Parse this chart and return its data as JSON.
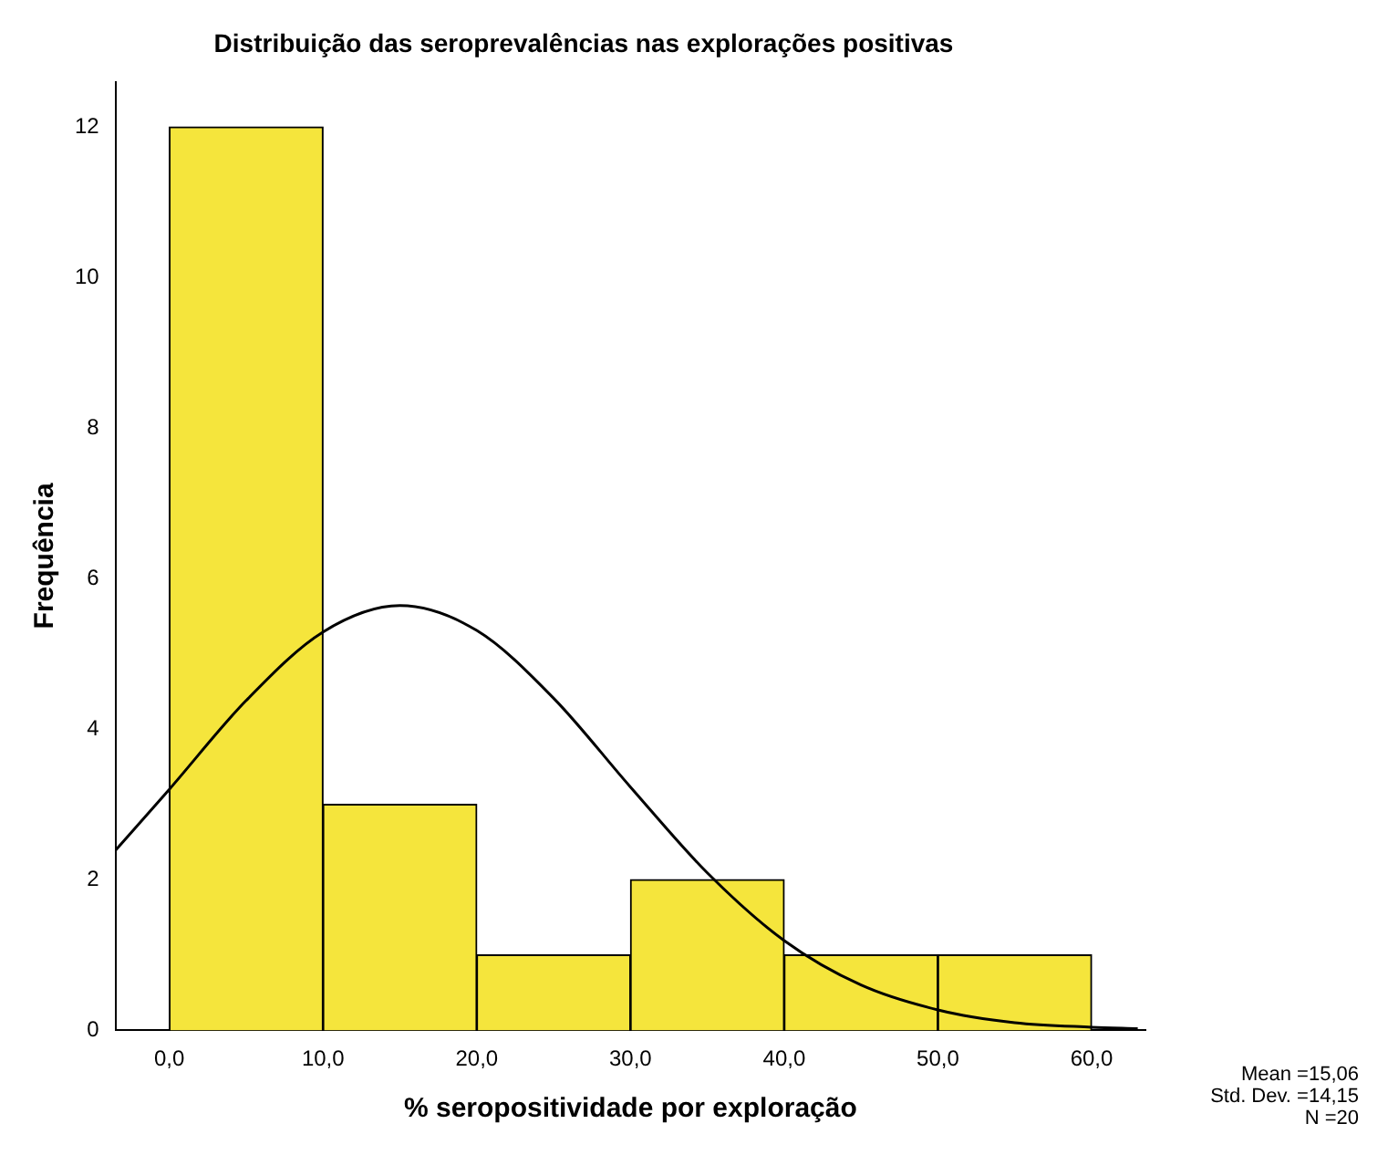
{
  "chart_data": {
    "type": "histogram",
    "title": "Distribuição das seroprevalências nas explorações positivas",
    "xlabel": "% seropositividade por exploração",
    "ylabel": "Frequência",
    "bins": [
      0,
      10,
      20,
      30,
      40,
      50,
      60
    ],
    "values": [
      12,
      3,
      1,
      2,
      1,
      1
    ],
    "color": "#f5e53c",
    "series": [
      {
        "type": "line",
        "color": "#000000",
        "x": [
          -3.5,
          0,
          5,
          10,
          15,
          20,
          25,
          30,
          35,
          40,
          45,
          50,
          55,
          60,
          63
        ],
        "values": [
          2.39,
          3.2,
          4.38,
          5.29,
          5.64,
          5.31,
          4.41,
          3.23,
          2.09,
          1.19,
          0.6,
          0.27,
          0.1,
          0.04,
          0.02
        ]
      }
    ],
    "marker": "none",
    "xlim": [
      -3.5,
      63.5
    ],
    "ylim": [
      0,
      12.6
    ],
    "xticks": [
      {
        "value": 0,
        "label": "0,0"
      },
      {
        "value": 10,
        "label": "10,0"
      },
      {
        "value": 20,
        "label": "20,0"
      },
      {
        "value": 30,
        "label": "30,0"
      },
      {
        "value": 40,
        "label": "40,0"
      },
      {
        "value": 50,
        "label": "50,0"
      },
      {
        "value": 60,
        "label": "60,0"
      }
    ],
    "yticks": [
      0,
      2,
      4,
      6,
      8,
      10,
      12
    ],
    "annotations": [
      "Mean =15,06",
      "Std. Dev. =14,15",
      "N =20"
    ]
  }
}
